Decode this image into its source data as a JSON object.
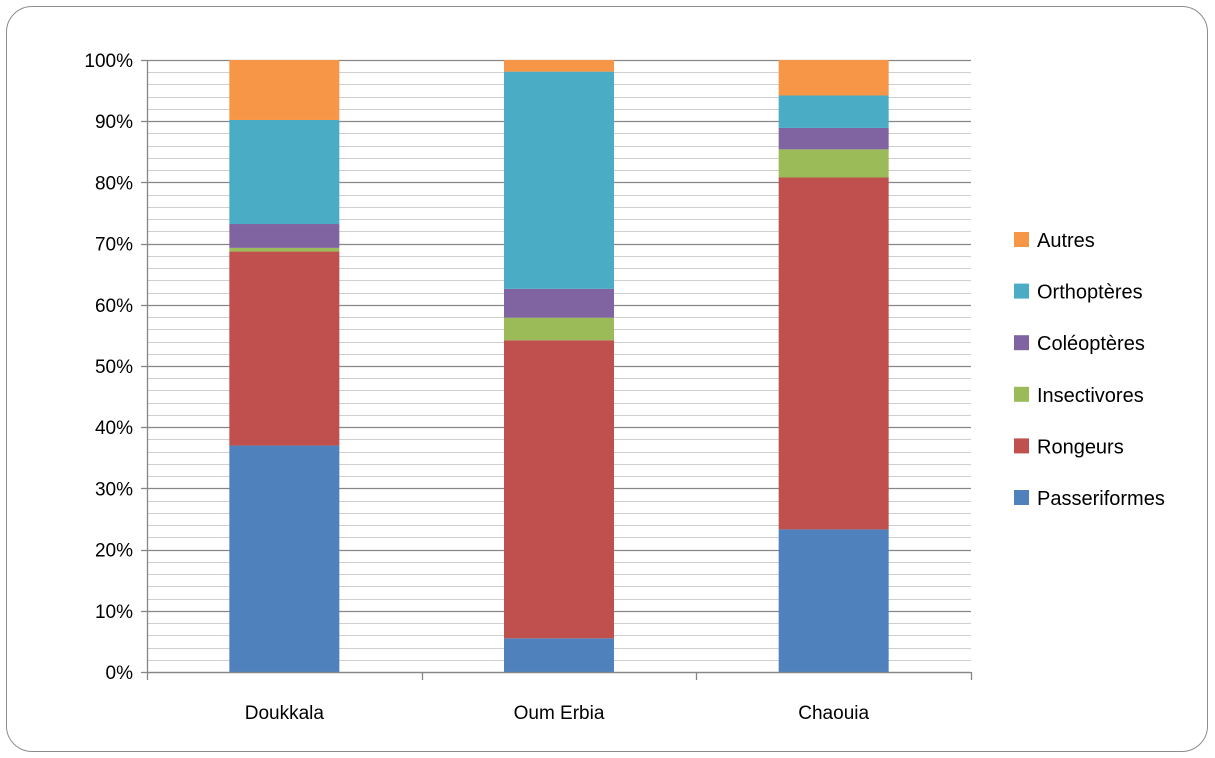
{
  "chart_data": {
    "type": "bar",
    "stacked": true,
    "percent": true,
    "categories": [
      "Doukkala",
      "Oum Erbia",
      "Chaouia"
    ],
    "series": [
      {
        "name": "Passeriformes",
        "color": "#4f81bd",
        "values": [
          37.0,
          5.5,
          23.3
        ]
      },
      {
        "name": "Rongeurs",
        "color": "#c0504d",
        "values": [
          31.7,
          48.7,
          57.5
        ]
      },
      {
        "name": "Insectivores",
        "color": "#9bbb59",
        "values": [
          0.6,
          3.7,
          4.6
        ]
      },
      {
        "name": "Coléoptères",
        "color": "#8064a2",
        "values": [
          3.9,
          4.7,
          3.5
        ]
      },
      {
        "name": "Orthoptères",
        "color": "#4bacc6",
        "values": [
          17.0,
          35.5,
          5.3
        ]
      },
      {
        "name": "Autres",
        "color": "#f79646",
        "values": [
          9.8,
          1.9,
          5.8
        ]
      }
    ],
    "ylim": [
      0,
      100
    ],
    "yticks": [
      "0%",
      "10%",
      "20%",
      "30%",
      "40%",
      "50%",
      "60%",
      "70%",
      "80%",
      "90%",
      "100%"
    ],
    "minor_grid_step": 2,
    "grid": true,
    "legend_position": "right"
  }
}
